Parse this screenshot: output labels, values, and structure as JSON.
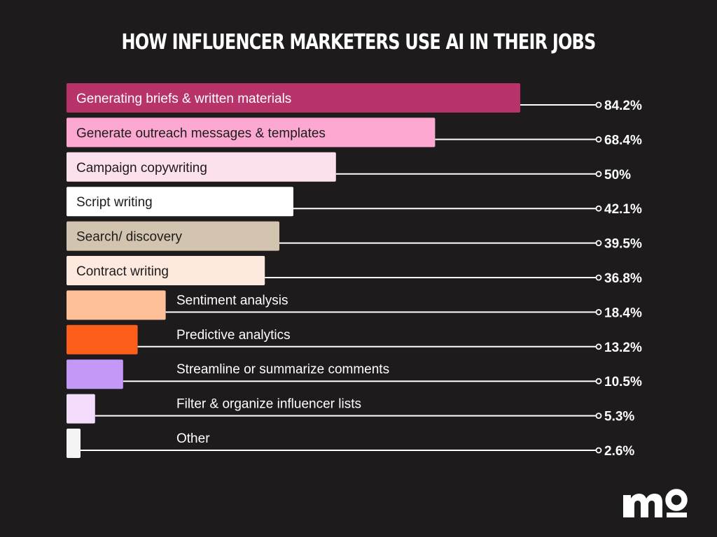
{
  "title": "HOW INFLUENCER MARKETERS USE AI IN THEIR JOBS",
  "logo_text": "mo",
  "colors": {
    "background": "#1e1b1c",
    "text": "#ffffff",
    "line": "#ffffff"
  },
  "chart_data": {
    "type": "bar",
    "orientation": "horizontal",
    "title": "HOW INFLUENCER MARKETERS USE AI IN THEIR JOBS",
    "xlabel": "",
    "ylabel": "",
    "xlim": [
      0,
      100
    ],
    "grid": false,
    "legend": "none",
    "categories": [
      "Generating briefs & written materials",
      "Generate outreach messages & templates",
      "Campaign copywriting",
      "Script writing",
      "Search/ discovery",
      "Contract writing",
      "Sentiment analysis",
      "Predictive analytics",
      "Streamline or summarize comments",
      "Filter & organize influencer lists",
      "Other"
    ],
    "values": [
      84.2,
      68.4,
      50,
      42.1,
      39.5,
      36.8,
      18.4,
      13.2,
      10.5,
      5.3,
      2.6
    ],
    "value_labels": [
      "84.2%",
      "68.4%",
      "50%",
      "42.1%",
      "39.5%",
      "36.8%",
      "18.4%",
      "13.2%",
      "10.5%",
      "5.3%",
      "2.6%"
    ],
    "bar_colors": [
      "#b8336a",
      "#fca8d1",
      "#fde0ee",
      "#ffffff",
      "#d3c4b0",
      "#fde9de",
      "#ffc09a",
      "#fd5e1a",
      "#c498f6",
      "#f4dcfc",
      "#f4f4f4"
    ],
    "label_colors": [
      "#ffffff",
      "#1e1b1c",
      "#1e1b1c",
      "#1e1b1c",
      "#1e1b1c",
      "#1e1b1c",
      "#ffffff",
      "#ffffff",
      "#ffffff",
      "#ffffff",
      "#ffffff"
    ],
    "label_inside": [
      true,
      true,
      true,
      true,
      true,
      true,
      false,
      false,
      false,
      false,
      false
    ]
  }
}
